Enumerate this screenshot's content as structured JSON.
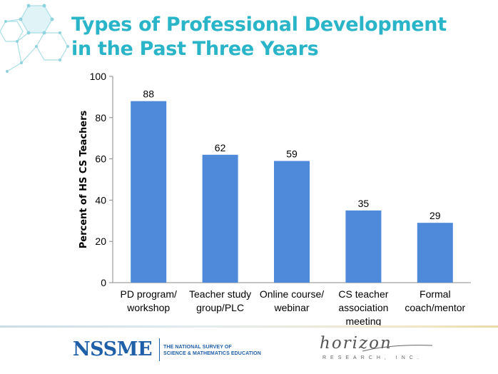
{
  "title_lines": [
    "Types of Professional Development",
    "in the Past Three Years"
  ],
  "colors": {
    "title": "#29b5c7",
    "bar": "#4f89d9",
    "axis": "#888888",
    "text": "#000000"
  },
  "icons": {
    "decoration": "hexagon-network-icon",
    "nssme_logo": "nssme-logo",
    "horizon_logo": "horizon-logo"
  },
  "chart_data": {
    "type": "bar",
    "categories": [
      [
        "PD program/",
        "workshop"
      ],
      [
        "Teacher study",
        "group/PLC"
      ],
      [
        "Online course/",
        "webinar"
      ],
      [
        "CS teacher",
        "association",
        "meeting"
      ],
      [
        "Formal",
        "coach/mentor"
      ]
    ],
    "values": [
      88,
      62,
      59,
      35,
      29
    ],
    "data_labels": [
      "88",
      "62",
      "59",
      "35",
      "29"
    ],
    "ylabel": "Percent of HS CS Teachers",
    "xlabel": "",
    "ylim": [
      0,
      100
    ],
    "yticks": [
      0,
      20,
      40,
      60,
      80,
      100
    ],
    "grid": false,
    "legend": "none"
  },
  "footer": {
    "nssme_name": "NSSME",
    "nssme_sub_lines": [
      "THE NATIONAL SURVEY OF",
      "SCIENCE & MATHEMATICS EDUCATION"
    ],
    "horizon_name": "horizon",
    "horizon_sub": "RESEARCH, INC."
  }
}
